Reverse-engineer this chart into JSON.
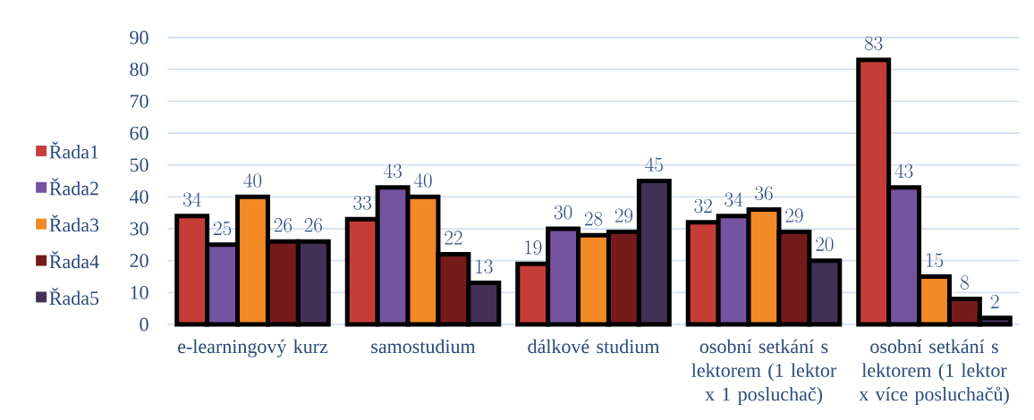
{
  "chart_data": {
    "type": "bar",
    "categories": [
      "e-learningový kurz",
      "samostudium",
      "dálkové studium",
      "osobní setkání s lektorem (1 lektor x 1 posluchač)",
      "osobní setkání s lektorem (1 lektor x více posluchačů)"
    ],
    "series": [
      {
        "name": "Řada1",
        "color": "#c63d38",
        "values": [
          34,
          33,
          19,
          32,
          83
        ]
      },
      {
        "name": "Řada2",
        "color": "#7454a0",
        "values": [
          25,
          43,
          30,
          34,
          43
        ]
      },
      {
        "name": "Řada3",
        "color": "#f28a25",
        "values": [
          40,
          40,
          28,
          36,
          15
        ]
      },
      {
        "name": "Řada4",
        "color": "#761b1b",
        "values": [
          26,
          22,
          29,
          29,
          8
        ]
      },
      {
        "name": "Řada5",
        "color": "#433057",
        "values": [
          26,
          13,
          45,
          20,
          2
        ]
      }
    ],
    "ylim": [
      0,
      90
    ],
    "yticks": [
      0,
      10,
      20,
      30,
      40,
      50,
      60,
      70,
      80,
      90
    ],
    "grid": "y",
    "legend": "left",
    "data_labels": true
  }
}
